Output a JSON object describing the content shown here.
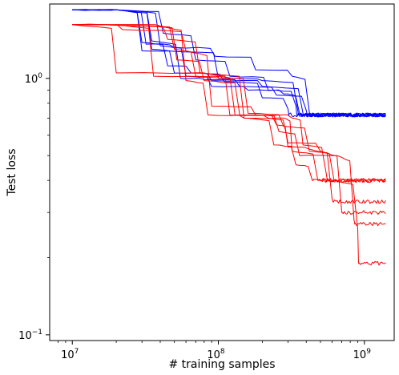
{
  "chart_data": {
    "type": "line",
    "xlabel": "# training samples",
    "ylabel": "Test loss",
    "xscale": "log",
    "yscale": "log",
    "xlim": [
      7000000,
      1600000000
    ],
    "ylim": [
      0.095,
      1.95
    ],
    "x_ticks": [
      {
        "value": 10000000,
        "base": "10",
        "exp": "7"
      },
      {
        "value": 100000000,
        "base": "10",
        "exp": "8"
      },
      {
        "value": 1000000000,
        "base": "10",
        "exp": "9"
      }
    ],
    "y_ticks": [
      {
        "value": 0.1,
        "base": "10",
        "exp": "−1"
      },
      {
        "value": 1.0,
        "base": "10",
        "exp": "0"
      }
    ],
    "grid": false,
    "legend": "none",
    "colors": {
      "blue": "#0000ff",
      "red": "#ff0000"
    },
    "series": [
      {
        "color": "blue",
        "x": [
          10000000.0,
          20000000.0,
          30000000.0,
          45000000.0,
          100000000.0,
          200000000.0,
          350000000.0,
          1400000000.0
        ],
        "y": [
          1.85,
          1.85,
          1.28,
          1.28,
          1.0,
          0.98,
          0.75,
          0.72
        ]
      },
      {
        "color": "blue",
        "x": [
          10000000.0,
          20000000.0,
          35000000.0,
          50000000.0,
          90000000.0,
          200000000.0,
          380000000.0,
          1400000000.0
        ],
        "y": [
          1.85,
          1.85,
          1.3,
          1.05,
          0.98,
          0.93,
          0.73,
          0.72
        ]
      },
      {
        "color": "blue",
        "x": [
          10000000.0,
          20000000.0,
          32000000.0,
          50000000.0,
          95000000.0,
          180000000.0,
          320000000.0,
          420000000.0,
          1400000000.0
        ],
        "y": [
          1.85,
          1.85,
          1.36,
          1.32,
          1.22,
          1.08,
          1.02,
          0.74,
          0.72
        ]
      },
      {
        "color": "blue",
        "x": [
          10000000.0,
          20000000.0,
          40000000.0,
          60000000.0,
          90000000.0,
          160000000.0,
          280000000.0,
          360000000.0,
          1400000000.0
        ],
        "y": [
          1.85,
          1.85,
          1.34,
          1.02,
          0.93,
          0.9,
          0.87,
          0.73,
          0.72
        ]
      },
      {
        "color": "blue",
        "x": [
          10000000.0,
          20000000.0,
          35000000.0,
          55000000.0,
          80000000.0,
          140000000.0,
          250000000.0,
          400000000.0,
          1400000000.0
        ],
        "y": [
          1.85,
          1.85,
          1.4,
          1.0,
          0.99,
          0.93,
          0.86,
          0.75,
          0.72
        ]
      },
      {
        "color": "blue",
        "x": [
          10000000.0,
          20000000.0,
          42000000.0,
          70000000.0,
          120000000.0,
          220000000.0,
          340000000.0,
          1400000000.0
        ],
        "y": [
          1.85,
          1.85,
          1.5,
          1.18,
          1.02,
          0.9,
          0.78,
          0.72
        ]
      },
      {
        "color": "blue",
        "x": [
          10000000.0,
          20000000.0,
          30000000.0,
          45000000.0,
          65000000.0,
          110000000.0,
          200000000.0,
          300000000.0,
          1400000000.0
        ],
        "y": [
          1.85,
          1.85,
          1.38,
          1.12,
          1.05,
          0.97,
          0.84,
          0.76,
          0.72
        ]
      },
      {
        "color": "red",
        "x": [
          10000000.0,
          16000000.0,
          40000000.0,
          60000000.0,
          85000000.0,
          150000000.0,
          280000000.0,
          320000000.0,
          480000000.0,
          1400000000.0
        ],
        "y": [
          1.62,
          1.62,
          1.6,
          0.98,
          0.72,
          0.7,
          0.7,
          0.52,
          0.4,
          0.4
        ]
      },
      {
        "color": "red",
        "x": [
          10000000.0,
          20000000.0,
          80000000.0,
          120000000.0,
          250000000.0,
          300000000.0,
          420000000.0,
          600000000.0,
          1400000000.0
        ],
        "y": [
          1.62,
          1.05,
          1.05,
          0.72,
          0.66,
          0.54,
          0.53,
          0.34,
          0.33
        ]
      },
      {
        "color": "red",
        "x": [
          10000000.0,
          17000000.0,
          50000000.0,
          70000000.0,
          130000000.0,
          220000000.0,
          300000000.0,
          500000000.0,
          700000000.0,
          1400000000.0
        ],
        "y": [
          1.62,
          1.62,
          1.3,
          1.02,
          0.72,
          0.7,
          0.56,
          0.52,
          0.3,
          0.3
        ]
      },
      {
        "color": "red",
        "x": [
          10000000.0,
          22000000.0,
          60000000.0,
          90000000.0,
          180000000.0,
          260000000.0,
          360000000.0,
          650000000.0,
          850000000.0,
          1400000000.0
        ],
        "y": [
          1.62,
          1.55,
          1.28,
          0.78,
          0.72,
          0.62,
          0.5,
          0.5,
          0.28,
          0.27
        ]
      },
      {
        "color": "red",
        "x": [
          10000000.0,
          16000000.0,
          45000000.0,
          75000000.0,
          150000000.0,
          240000000.0,
          340000000.0,
          440000000.0,
          1400000000.0
        ],
        "y": [
          1.62,
          1.62,
          1.42,
          1.05,
          0.7,
          0.55,
          0.46,
          0.4,
          0.4
        ]
      },
      {
        "color": "red",
        "x": [
          10000000.0,
          20000000.0,
          36000000.0,
          90000000.0,
          160000000.0,
          280000000.0,
          420000000.0,
          620000000.0,
          900000000.0,
          1400000000.0
        ],
        "y": [
          1.62,
          1.62,
          1.02,
          1.02,
          0.73,
          0.65,
          0.52,
          0.4,
          0.26,
          0.19
        ]
      },
      {
        "color": "red",
        "x": [
          10000000.0,
          18000000.0,
          52000000.0,
          80000000.0,
          140000000.0,
          320000000.0,
          380000000.0,
          550000000.0,
          1400000000.0
        ],
        "y": [
          1.62,
          1.62,
          1.18,
          0.98,
          0.72,
          0.7,
          0.55,
          0.42,
          0.4
        ]
      }
    ]
  }
}
